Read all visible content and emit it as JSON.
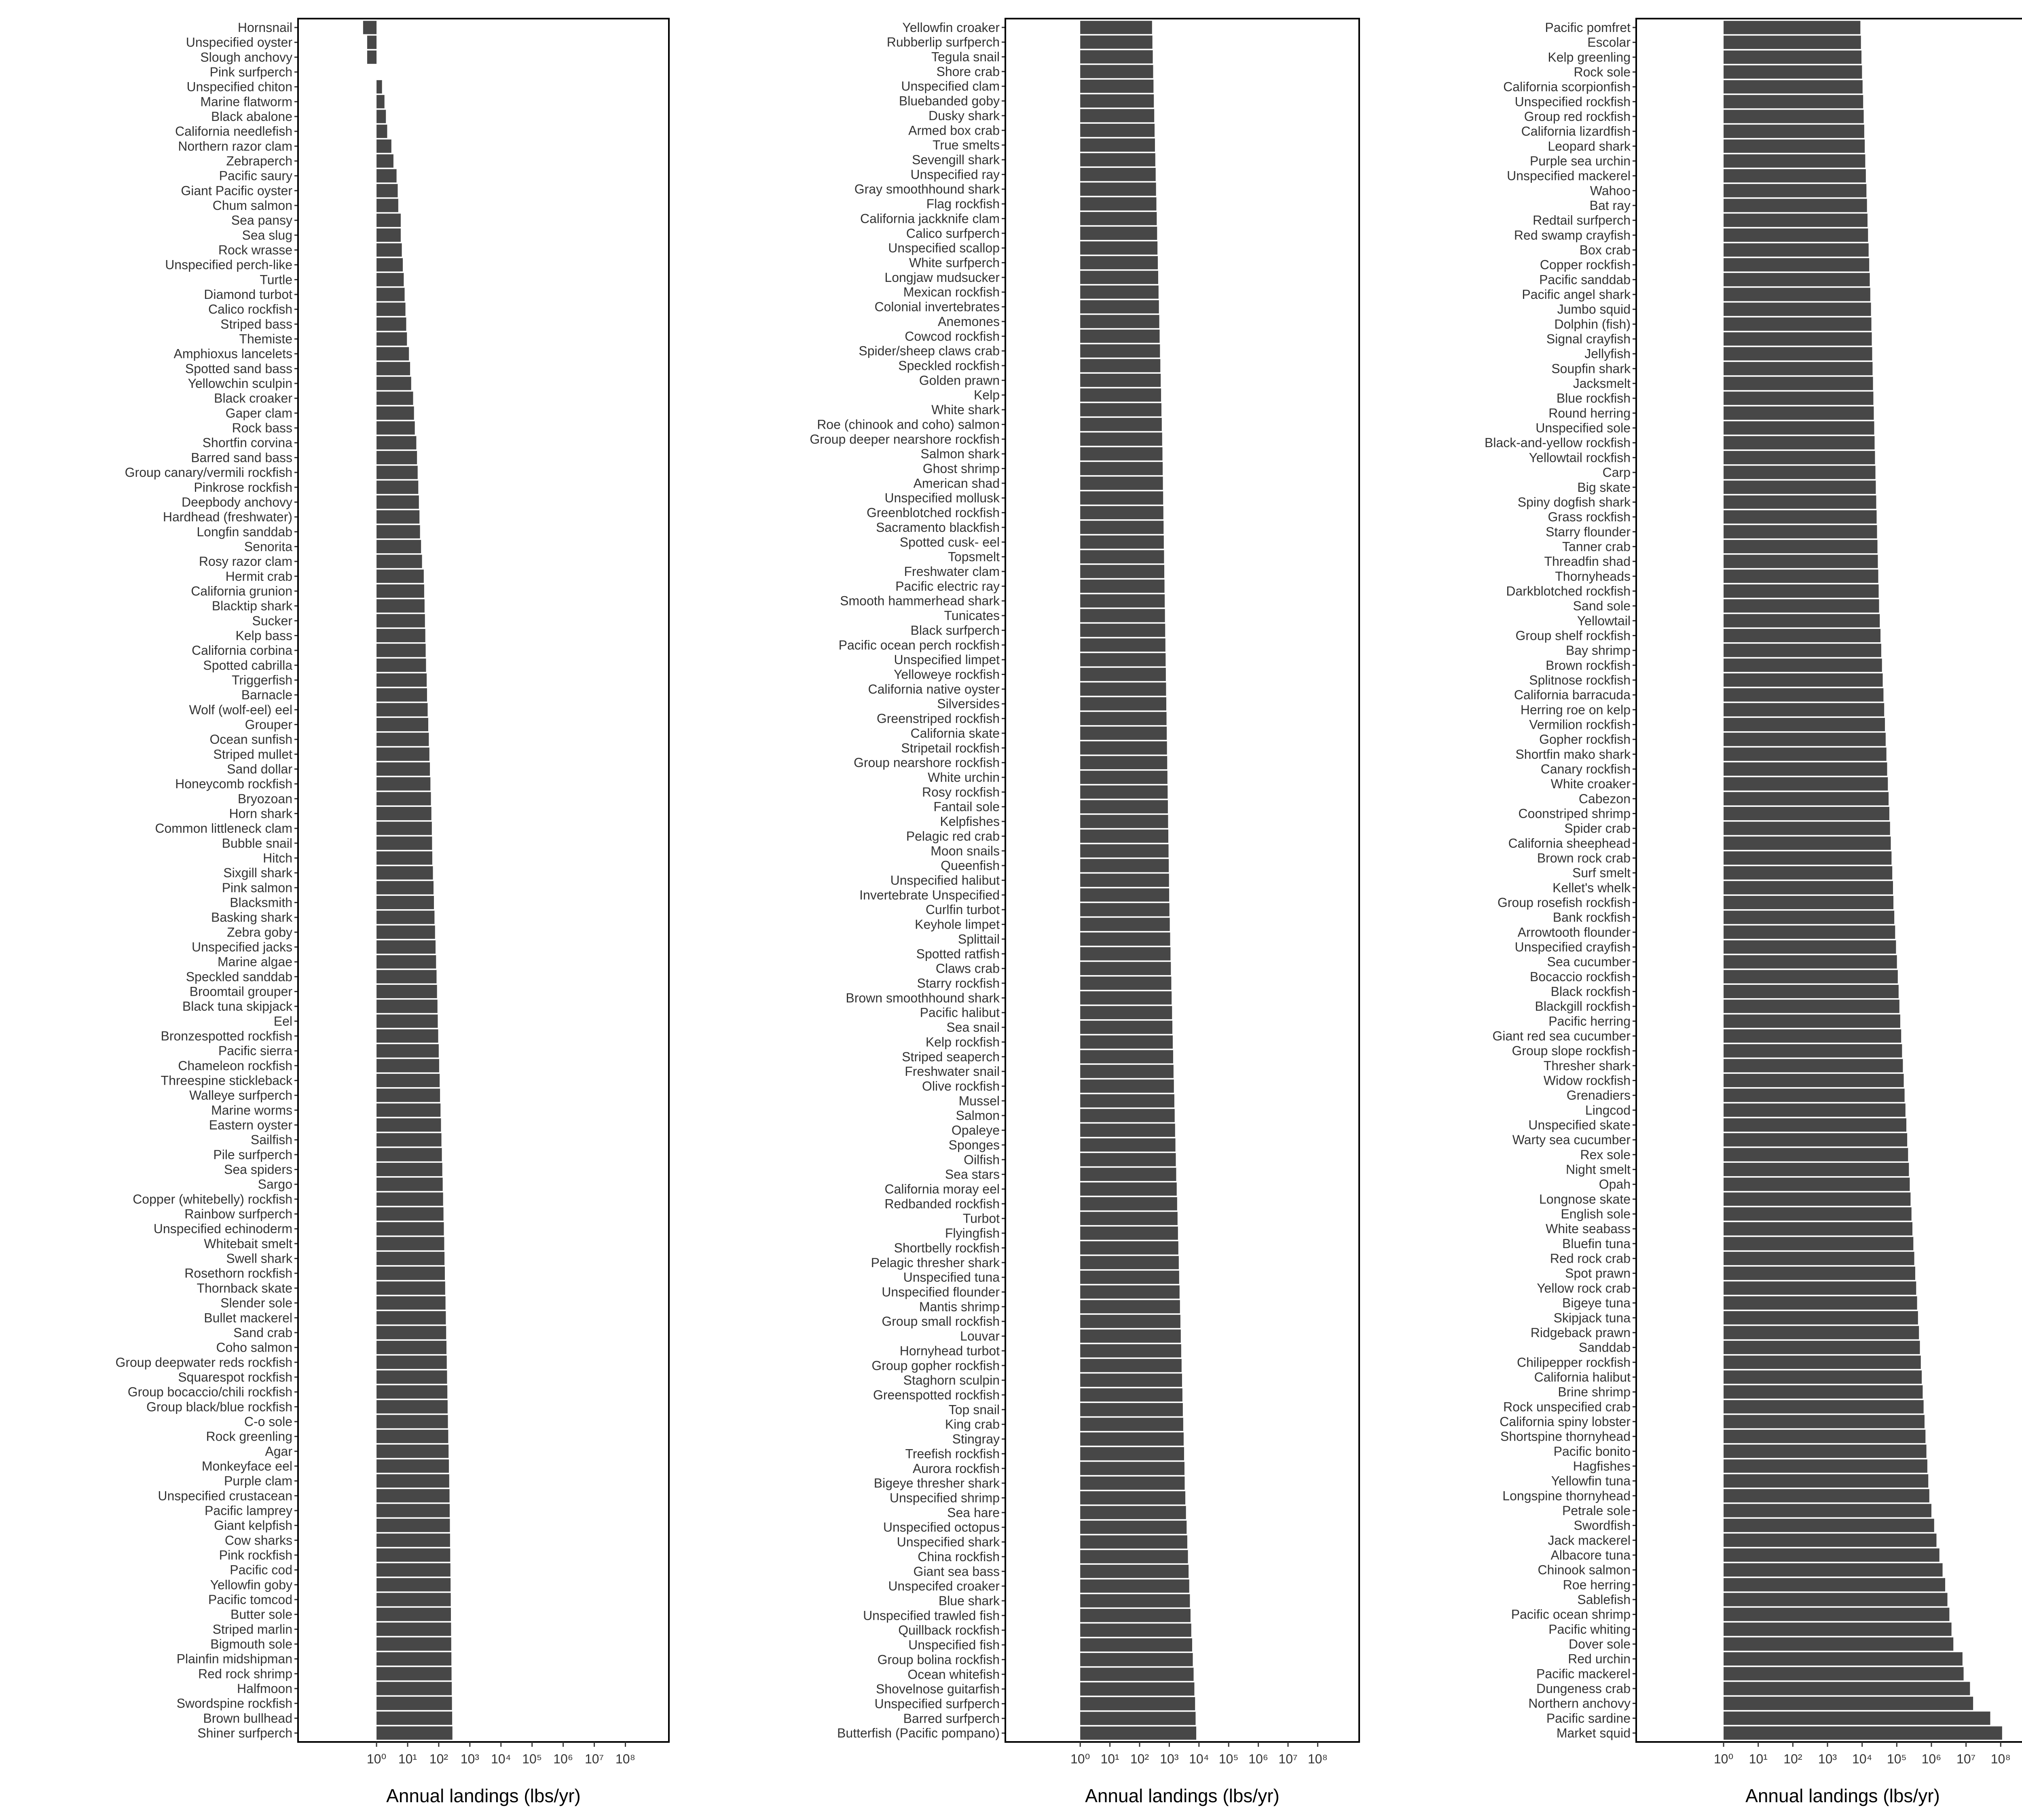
{
  "chart_data": [
    {
      "type": "bar",
      "orientation": "horizontal",
      "log_x": true,
      "color": "#474747",
      "x_label": "Annual landings (lbs/yr)",
      "xlim": [
        0.003,
        2500000000
      ],
      "xticks": [
        {
          "value": 1,
          "label": "10⁰"
        },
        {
          "value": 10,
          "label": "10¹"
        },
        {
          "value": 100,
          "label": "10²"
        },
        {
          "value": 1000,
          "label": "10³"
        },
        {
          "value": 10000,
          "label": "10⁴"
        },
        {
          "value": 100000,
          "label": "10⁵"
        },
        {
          "value": 1000000,
          "label": "10⁶"
        },
        {
          "value": 10000000,
          "label": "10⁷"
        },
        {
          "value": 100000000,
          "label": "10⁸"
        }
      ],
      "categories": [
        "Hornsnail",
        "Unspecified oyster",
        "Slough anchovy",
        "Pink surfperch",
        "Unspecified chiton",
        "Marine flatworm",
        "Black abalone",
        "California needlefish",
        "Northern razor clam",
        "Zebraperch",
        "Pacific saury",
        "Giant Pacific oyster",
        "Chum salmon",
        "Sea pansy",
        "Sea slug",
        "Rock wrasse",
        "Unspecified perch-like",
        "Turtle",
        "Diamond turbot",
        "Calico rockfish",
        "Striped bass",
        "Themiste",
        "Amphioxus lancelets",
        "Spotted sand bass",
        "Yellowchin sculpin",
        "Black croaker",
        "Gaper clam",
        "Rock bass",
        "Shortfin corvina",
        "Barred sand bass",
        "Group canary/vermili rockfish",
        "Pinkrose rockfish",
        "Deepbody anchovy",
        "Hardhead (freshwater)",
        "Longfin sanddab",
        "Senorita",
        "Rosy razor clam",
        "Hermit crab",
        "California grunion",
        "Blacktip shark",
        "Sucker",
        "Kelp bass",
        "California corbina",
        "Spotted cabrilla",
        "Triggerfish",
        "Barnacle",
        "Wolf (wolf-eel) eel",
        "Grouper",
        "Ocean sunfish",
        "Striped mullet",
        "Sand dollar",
        "Honeycomb rockfish",
        "Bryozoan",
        "Horn shark",
        "Common littleneck clam",
        "Bubble snail",
        "Hitch",
        "Sixgill shark",
        "Pink salmon",
        "Blacksmith",
        "Basking shark",
        "Zebra goby",
        "Unspecified jacks",
        "Marine algae",
        "Speckled sanddab",
        "Broomtail grouper",
        "Black tuna skipjack",
        "Eel",
        "Bronzespotted rockfish",
        "Pacific sierra",
        "Chameleon rockfish",
        "Threespine stickleback",
        "Walleye surfperch",
        "Marine worms",
        "Eastern oyster",
        "Sailfish",
        "Pile surfperch",
        "Sea spiders",
        "Sargo",
        "Copper (whitebelly) rockfish",
        "Rainbow surfperch",
        "Unspecified echinoderm",
        "Whitebait smelt",
        "Swell shark",
        "Rosethorn rockfish",
        "Thornback skate",
        "Slender sole",
        "Bullet mackerel",
        "Sand crab",
        "Coho salmon",
        "Group deepwater reds rockfish",
        "Squarespot rockfish",
        "Group bocaccio/chili rockfish",
        "Group black/blue rockfish",
        "C-o sole",
        "Rock greenling",
        "Agar",
        "Monkeyface eel",
        "Purple clam",
        "Unspecified crustacean",
        "Pacific lamprey",
        "Giant kelpfish",
        "Cow sharks",
        "Pink rockfish",
        "Pacific cod",
        "Yellowfin goby",
        "Pacific tomcod",
        "Butter sole",
        "Striped marlin",
        "Bigmouth sole",
        "Plainfin midshipman",
        "Red rock shrimp",
        "Halfmoon",
        "Swordspine rockfish",
        "Brown bullhead",
        "Shiner surfperch"
      ],
      "values": [
        0.37,
        0.5,
        0.5,
        1,
        1.5,
        1.8,
        2,
        2.2,
        3,
        3.5,
        4.4,
        4.8,
        5,
        6,
        6,
        6.5,
        7,
        7.5,
        8,
        8.5,
        9,
        9.5,
        11,
        12,
        13,
        15,
        16,
        17,
        19,
        20,
        21,
        22,
        23,
        24,
        25,
        27,
        29,
        33,
        34,
        35,
        36,
        37,
        38,
        39,
        41,
        42,
        44,
        46,
        48,
        50,
        52,
        54,
        56,
        58,
        60,
        61,
        62,
        65,
        68,
        70,
        73,
        76,
        79,
        82,
        85,
        88,
        91,
        93,
        96,
        100,
        103,
        107,
        110,
        114,
        118,
        122,
        126,
        130,
        134,
        138,
        142,
        146,
        150,
        153,
        157,
        161,
        165,
        169,
        173,
        177,
        181,
        185,
        189,
        193,
        197,
        202,
        207,
        212,
        217,
        222,
        225,
        228,
        231,
        234,
        237,
        240,
        243,
        246,
        249,
        252,
        255,
        258,
        262,
        266,
        270,
        275
      ]
    },
    {
      "type": "bar",
      "orientation": "horizontal",
      "log_x": true,
      "color": "#474747",
      "x_label": "Annual landings (lbs/yr)",
      "xlim": [
        0.003,
        2500000000
      ],
      "xticks": [
        {
          "value": 1,
          "label": "10⁰"
        },
        {
          "value": 10,
          "label": "10¹"
        },
        {
          "value": 100,
          "label": "10²"
        },
        {
          "value": 1000,
          "label": "10³"
        },
        {
          "value": 10000,
          "label": "10⁴"
        },
        {
          "value": 100000,
          "label": "10⁵"
        },
        {
          "value": 1000000,
          "label": "10⁶"
        },
        {
          "value": 10000000,
          "label": "10⁷"
        },
        {
          "value": 100000000,
          "label": "10⁸"
        }
      ],
      "categories": [
        "Yellowfin croaker",
        "Rubberlip surfperch",
        "Tegula snail",
        "Shore crab",
        "Unspecified clam",
        "Bluebanded goby",
        "Dusky shark",
        "Armed box crab",
        "True smelts",
        "Sevengill shark",
        "Unspecified ray",
        "Gray smoothhound shark",
        "Flag rockfish",
        "California jackknife clam",
        "Calico surfperch",
        "Unspecified scallop",
        "White surfperch",
        "Longjaw mudsucker",
        "Mexican rockfish",
        "Colonial invertebrates",
        "Anemones",
        "Cowcod rockfish",
        "Spider/sheep claws crab",
        "Speckled rockfish",
        "Golden prawn",
        "Kelp",
        "White shark",
        "Roe (chinook and coho) salmon",
        "Group deeper nearshore rockfish",
        "Salmon shark",
        "Ghost shrimp",
        "American shad",
        "Unspecified mollusk",
        "Greenblotched rockfish",
        "Sacramento blackfish",
        "Spotted cusk- eel",
        "Topsmelt",
        "Freshwater clam",
        "Pacific electric ray",
        "Smooth hammerhead shark",
        "Tunicates",
        "Black surfperch",
        "Pacific ocean perch rockfish",
        "Unspecified limpet",
        "Yelloweye rockfish",
        "California native oyster",
        "Silversides",
        "Greenstriped rockfish",
        "California skate",
        "Stripetail rockfish",
        "Group nearshore rockfish",
        "White urchin",
        "Rosy rockfish",
        "Fantail sole",
        "Kelpfishes",
        "Pelagic red crab",
        "Moon snails",
        "Queenfish",
        "Unspecified halibut",
        "Invertebrate Unspecified",
        "Curlfin turbot",
        "Keyhole limpet",
        "Splittail",
        "Spotted ratfish",
        "Claws crab",
        "Starry rockfish",
        "Brown smoothhound shark",
        "Pacific halibut",
        "Sea snail",
        "Kelp rockfish",
        "Striped seaperch",
        "Freshwater snail",
        "Olive rockfish",
        "Mussel",
        "Salmon",
        "Opaleye",
        "Sponges",
        "Oilfish",
        "Sea stars",
        "California moray eel",
        "Redbanded rockfish",
        "Turbot",
        "Flyingfish",
        "Shortbelly rockfish",
        "Pelagic thresher shark",
        "Unspecified tuna",
        "Unspecified flounder",
        "Mantis shrimp",
        "Group small rockfish",
        "Louvar",
        "Hornyhead turbot",
        "Group gopher rockfish",
        "Staghorn sculpin",
        "Greenspotted rockfish",
        "Top snail",
        "King crab",
        "Stingray",
        "Treefish rockfish",
        "Aurora rockfish",
        "Bigeye thresher shark",
        "Unspecified shrimp",
        "Sea hare",
        "Unspecified octopus",
        "Unspecified shark",
        "China rockfish",
        "Giant sea bass",
        "Unspecifed croaker",
        "Blue shark",
        "Unspecified trawled fish",
        "Quillback rockfish",
        "Unspecified fish",
        "Group bolina rockfish",
        "Ocean whitefish",
        "Shovelnose guitarfish",
        "Unspecified surfperch",
        "Barred surfperch",
        "Butterfish (Pacific pompano)"
      ],
      "values": [
        263,
        270,
        278,
        286,
        294,
        302,
        311,
        320,
        329,
        338,
        348,
        358,
        368,
        378,
        389,
        400,
        411,
        423,
        435,
        447,
        460,
        473,
        486,
        500,
        514,
        529,
        544,
        559,
        575,
        589,
        600,
        610,
        621,
        632,
        643,
        654,
        666,
        678,
        690,
        702,
        714,
        727,
        740,
        753,
        766,
        780,
        793,
        807,
        822,
        836,
        851,
        866,
        881,
        897,
        912,
        928,
        945,
        961,
        978,
        990,
        1010,
        1040,
        1070,
        1100,
        1130,
        1170,
        1200,
        1240,
        1270,
        1310,
        1350,
        1390,
        1430,
        1480,
        1520,
        1570,
        1610,
        1660,
        1710,
        1780,
        1840,
        1900,
        1960,
        2020,
        2090,
        2150,
        2220,
        2290,
        2370,
        2440,
        2520,
        2600,
        2690,
        2770,
        2860,
        2950,
        3050,
        3150,
        3250,
        3300,
        3470,
        3650,
        3840,
        4040,
        4250,
        4470,
        4700,
        4950,
        5200,
        5500,
        5900,
        6200,
        6600,
        7000,
        7400,
        7700,
        8100
      ]
    },
    {
      "type": "bar",
      "orientation": "horizontal",
      "log_x": true,
      "color": "#474747",
      "x_label": "Annual landings (lbs/yr)",
      "xlim": [
        0.003,
        2500000000
      ],
      "xticks": [
        {
          "value": 1,
          "label": "10⁰"
        },
        {
          "value": 10,
          "label": "10¹"
        },
        {
          "value": 100,
          "label": "10²"
        },
        {
          "value": 1000,
          "label": "10³"
        },
        {
          "value": 10000,
          "label": "10⁴"
        },
        {
          "value": 100000,
          "label": "10⁵"
        },
        {
          "value": 1000000,
          "label": "10⁶"
        },
        {
          "value": 10000000,
          "label": "10⁷"
        },
        {
          "value": 100000000,
          "label": "10⁸"
        }
      ],
      "categories": [
        "Pacific pomfret",
        "Escolar",
        "Kelp greenling",
        "Rock sole",
        "California scorpionfish",
        "Unspecified rockfish",
        "Group red rockfish",
        "California lizardfish",
        "Leopard shark",
        "Purple sea urchin",
        "Unspecified mackerel",
        "Wahoo",
        "Bat ray",
        "Redtail surfperch",
        "Red swamp crayfish",
        "Box crab",
        "Copper rockfish",
        "Pacific sanddab",
        "Pacific angel shark",
        "Jumbo squid",
        "Dolphin (fish)",
        "Signal crayfish",
        "Jellyfish",
        "Soupfin shark",
        "Jacksmelt",
        "Blue rockfish",
        "Round herring",
        "Unspecified sole",
        "Black-and-yellow rockfish",
        "Yellowtail rockfish",
        "Carp",
        "Big skate",
        "Spiny dogfish shark",
        "Grass rockfish",
        "Starry flounder",
        "Tanner crab",
        "Threadfin shad",
        "Thornyheads",
        "Darkblotched rockfish",
        "Sand sole",
        "Yellowtail",
        "Group shelf rockfish",
        "Bay shrimp",
        "Brown rockfish",
        "Splitnose rockfish",
        "California barracuda",
        "Herring roe on kelp",
        "Vermilion rockfish",
        "Gopher rockfish",
        "Shortfin mako shark",
        "Canary rockfish",
        "White croaker",
        "Cabezon",
        "Coonstriped shrimp",
        "Spider crab",
        "California sheephead",
        "Brown rock crab",
        "Surf smelt",
        "Kellet's whelk",
        "Group rosefish rockfish",
        "Bank rockfish",
        "Arrowtooth flounder",
        "Unspecified crayfish",
        "Sea cucumber",
        "Bocaccio rockfish",
        "Black rockfish",
        "Blackgill rockfish",
        "Pacific herring",
        "Giant red sea cucumber",
        "Group slope rockfish",
        "Thresher shark",
        "Widow rockfish",
        "Grenadiers",
        "Lingcod",
        "Unspecified skate",
        "Warty sea cucumber",
        "Rex sole",
        "Night smelt",
        "Opah",
        "Longnose skate",
        "English sole",
        "White seabass",
        "Bluefin tuna",
        "Red rock crab",
        "Spot prawn",
        "Yellow rock crab",
        "Bigeye tuna",
        "Skipjack tuna",
        "Ridgeback prawn",
        "Sanddab",
        "Chilipepper rockfish",
        "California halibut",
        "Brine shrimp",
        "Rock unspecified crab",
        "California spiny lobster",
        "Shortspine thornyhead",
        "Pacific bonito",
        "Hagfishes",
        "Yellowfin tuna",
        "Longspine thornyhead",
        "Petrale sole",
        "Swordfish",
        "Jack mackerel",
        "Albacore tuna",
        "Chinook salmon",
        "Roe herring",
        "Sablefish",
        "Pacific ocean shrimp",
        "Pacific whiting",
        "Dover sole",
        "Red urchin",
        "Pacific mackerel",
        "Dungeness crab",
        "Northern anchovy",
        "Pacific sardine",
        "Market squid"
      ],
      "values": [
        8900,
        9230,
        9570,
        9920,
        10300,
        10700,
        11100,
        11500,
        11900,
        12300,
        12800,
        13300,
        13800,
        14300,
        14800,
        15400,
        16000,
        16600,
        17200,
        18000,
        18500,
        19000,
        19500,
        20000,
        20600,
        21100,
        21700,
        22300,
        22900,
        23500,
        24200,
        24800,
        25500,
        26200,
        26900,
        27700,
        28400,
        29200,
        30000,
        30800,
        32300,
        33900,
        35600,
        37400,
        39300,
        41300,
        43300,
        45500,
        47800,
        50200,
        52700,
        55300,
        58100,
        61000,
        64000,
        67200,
        70600,
        74100,
        77800,
        80000,
        84700,
        89700,
        95000,
        101000,
        107000,
        113000,
        119000,
        126000,
        134000,
        142000,
        150000,
        159000,
        168000,
        178000,
        189000,
        200000,
        212000,
        224000,
        237000,
        250000,
        266000,
        283000,
        301000,
        320000,
        341000,
        363000,
        386000,
        410000,
        437000,
        465000,
        494000,
        526000,
        560000,
        595000,
        633000,
        674000,
        717000,
        763000,
        812000,
        870000,
        1000000,
        1200000,
        1400000,
        1700000,
        2100000,
        2500000,
        2900000,
        3300000,
        3800000,
        4300000,
        7900000,
        8500000,
        13000000,
        16000000,
        50000000,
        110000000
      ]
    }
  ]
}
